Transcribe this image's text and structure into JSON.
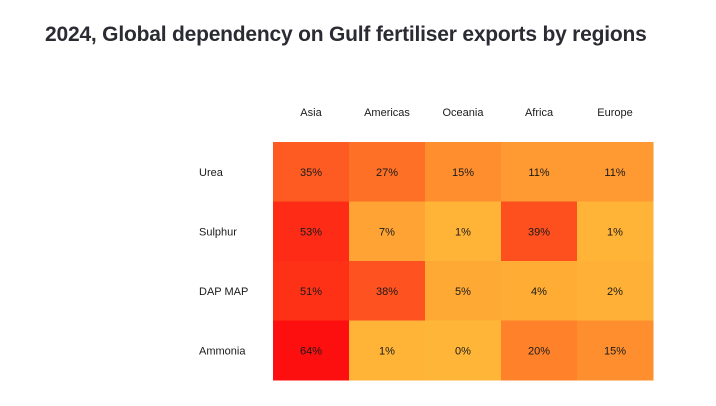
{
  "chart_data": {
    "type": "heatmap",
    "title": "2024, Global dependency on Gulf fertiliser exports by regions",
    "columns": [
      "Asia",
      "Americas",
      "Oceania",
      "Africa",
      "Europe"
    ],
    "rows": [
      "Urea",
      "Sulphur",
      "DAP MAP",
      "Ammonia"
    ],
    "values": [
      [
        35,
        27,
        15,
        11,
        11
      ],
      [
        53,
        7,
        1,
        39,
        1
      ],
      [
        51,
        38,
        5,
        4,
        2
      ],
      [
        64,
        1,
        0,
        20,
        15
      ]
    ],
    "value_suffix": "%",
    "color_scale": {
      "min_value": 0,
      "max_value": 64,
      "min_color": "#ffb638",
      "max_color": "#fe0f0f"
    }
  }
}
